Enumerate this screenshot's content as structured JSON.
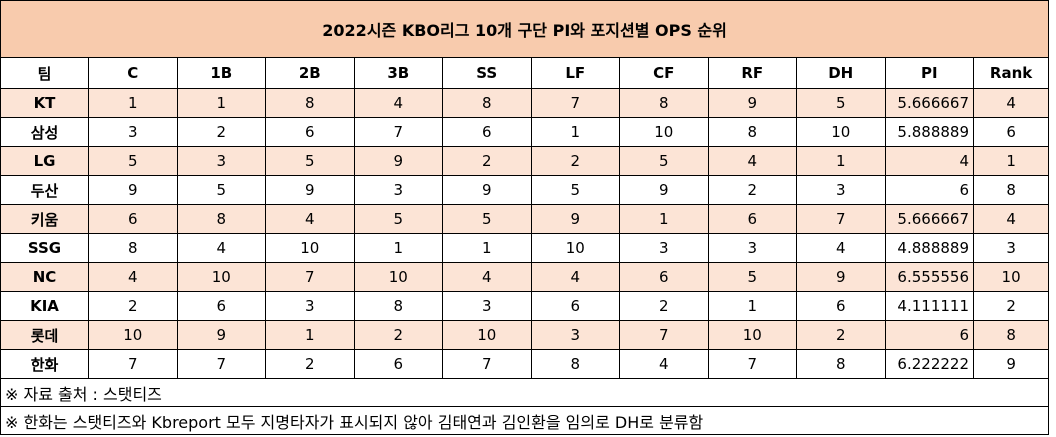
{
  "title": "2022시즌 KBO리그 10개 구단 PI와 포지션별 OPS 순위",
  "table": {
    "header": [
      "팀",
      "C",
      "1B",
      "2B",
      "3B",
      "SS",
      "LF",
      "CF",
      "RF",
      "DH",
      "PI",
      "Rank"
    ],
    "rows": [
      [
        "KT",
        1,
        1,
        8,
        4,
        8,
        7,
        8,
        9,
        5,
        5.666667,
        4
      ],
      [
        "삼성",
        3,
        2,
        6,
        7,
        6,
        1,
        10,
        8,
        10,
        5.888889,
        6
      ],
      [
        "LG",
        5,
        3,
        5,
        9,
        2,
        2,
        5,
        4,
        1,
        4,
        1
      ],
      [
        "두산",
        9,
        5,
        9,
        3,
        9,
        5,
        9,
        2,
        3,
        6,
        8
      ],
      [
        "키움",
        6,
        8,
        4,
        5,
        5,
        9,
        1,
        6,
        7,
        5.666667,
        4
      ],
      [
        "SSG",
        8,
        4,
        10,
        1,
        1,
        10,
        3,
        3,
        4,
        4.888889,
        3
      ],
      [
        "NC",
        4,
        10,
        7,
        10,
        4,
        4,
        6,
        5,
        9,
        6.555556,
        10
      ],
      [
        "KIA",
        2,
        6,
        3,
        8,
        3,
        6,
        2,
        1,
        6,
        4.111111,
        2
      ],
      [
        "롯데",
        10,
        9,
        1,
        2,
        10,
        3,
        7,
        10,
        2,
        6,
        8
      ],
      [
        "한화",
        7,
        7,
        2,
        6,
        7,
        8,
        4,
        7,
        8,
        6.222222,
        9
      ]
    ]
  },
  "notes": [
    "※ 자료 출처 : 스탯티즈",
    "※ 한화는 스탯티즈와 Kbreport 모두 지명타자가 표시되지 않아 김태연과 김인환을 임의로 DH로 분류함"
  ]
}
